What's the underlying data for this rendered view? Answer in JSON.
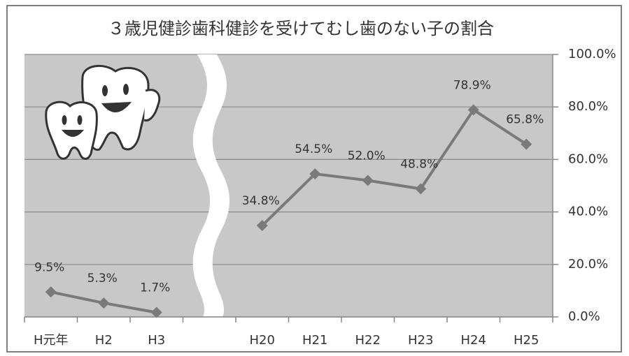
{
  "chart_data": {
    "type": "line",
    "title": "３歳児健診歯科健診を受けてむし歯のない子の割合",
    "categories": [
      "H元年",
      "H2",
      "H3",
      null,
      "H20",
      "H21",
      "H22",
      "H23",
      "H24",
      "H25"
    ],
    "values": [
      9.5,
      5.3,
      1.7,
      null,
      34.8,
      54.5,
      52.0,
      48.8,
      78.9,
      65.8
    ],
    "value_labels": [
      "9.5%",
      "5.3%",
      "1.7%",
      null,
      "34.8%",
      "54.5%",
      "52.0%",
      "48.8%",
      "78.9%",
      "65.8%"
    ],
    "color": "#7a7a7a",
    "ylim": [
      0,
      100
    ],
    "yticks": [
      {
        "value": 0,
        "label": "0.0%"
      },
      {
        "value": 20,
        "label": "20.0%"
      },
      {
        "value": 40,
        "label": "40.0%"
      },
      {
        "value": 60,
        "label": "60.0%"
      },
      {
        "value": 80,
        "label": "80.0%"
      },
      {
        "value": 100,
        "label": "100.0%"
      }
    ],
    "grid": true,
    "y_axis_side": "right"
  }
}
